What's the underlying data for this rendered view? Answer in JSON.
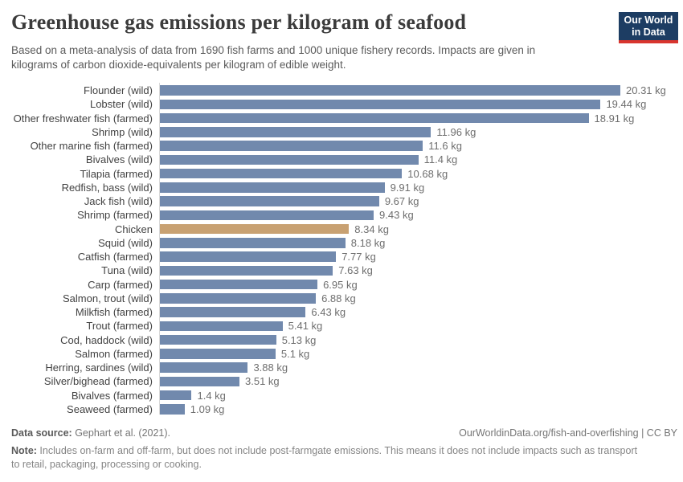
{
  "header": {
    "title": "Greenhouse gas emissions per kilogram of seafood",
    "subtitle_line1": "Based on a meta-analysis of data from 1690 fish farms and 1000 unique fishery records. Impacts are given in",
    "subtitle_line2": "kilograms of carbon dioxide-equivalents per kilogram of edible weight.",
    "logo_line1": "Our World",
    "logo_line2": "in Data"
  },
  "chart_data": {
    "type": "bar",
    "orientation": "horizontal",
    "title": "Greenhouse gas emissions per kilogram of seafood",
    "unit": "kg CO2-equivalents per kg edible weight",
    "xlim": [
      0,
      20.31
    ],
    "grid": false,
    "legend": "none",
    "categories": [
      "Flounder (wild)",
      "Lobster (wild)",
      "Other freshwater fish (farmed)",
      "Shrimp (wild)",
      "Other marine fish (farmed)",
      "Bivalves (wild)",
      "Tilapia (farmed)",
      "Redfish, bass (wild)",
      "Jack fish (wild)",
      "Shrimp (farmed)",
      "Chicken",
      "Squid (wild)",
      "Catfish (farmed)",
      "Tuna (wild)",
      "Carp (farmed)",
      "Salmon, trout (wild)",
      "Milkfish (farmed)",
      "Trout (farmed)",
      "Cod, haddock (wild)",
      "Salmon (farmed)",
      "Herring, sardines (wild)",
      "Silver/bighead (farmed)",
      "Bivalves (farmed)",
      "Seaweed (farmed)"
    ],
    "values": [
      20.31,
      19.44,
      18.91,
      11.96,
      11.6,
      11.4,
      10.68,
      9.91,
      9.67,
      9.43,
      8.34,
      8.18,
      7.77,
      7.63,
      6.95,
      6.88,
      6.43,
      5.41,
      5.13,
      5.1,
      3.88,
      3.51,
      1.4,
      1.09
    ],
    "value_labels": [
      "20.31 kg",
      "19.44 kg",
      "18.91 kg",
      "11.96 kg",
      "11.6 kg",
      "11.4 kg",
      "10.68 kg",
      "9.91 kg",
      "9.67 kg",
      "9.43 kg",
      "8.34 kg",
      "8.18 kg",
      "7.77 kg",
      "7.63 kg",
      "6.95 kg",
      "6.88 kg",
      "6.43 kg",
      "5.41 kg",
      "5.13 kg",
      "5.1 kg",
      "3.88 kg",
      "3.51 kg",
      "1.4 kg",
      "1.09 kg"
    ],
    "highlight_category": "Chicken",
    "colors": {
      "bar": "#7189ad",
      "highlight": "#c8a172",
      "axis_line": "#d9d9d9"
    }
  },
  "footer": {
    "datasource_label": "Data source:",
    "datasource_value": " Gephart et al. (2021).",
    "license": "OurWorldinData.org/fish-and-overfishing | CC BY",
    "note_label": "Note:",
    "note_line1": " Includes on-farm and off-farm, but does not include post-farmgate emissions. This means it does not include impacts such as transport",
    "note_line2": "to retail, packaging, processing or cooking."
  }
}
